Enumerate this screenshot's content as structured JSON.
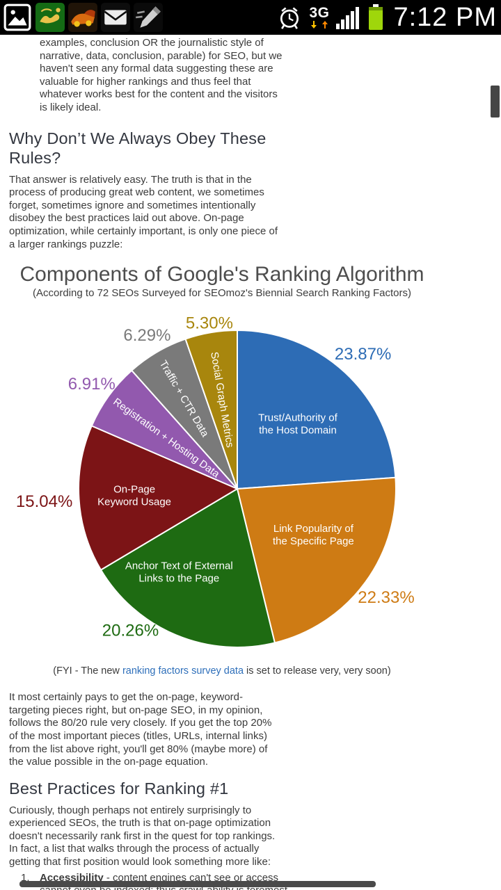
{
  "status_bar": {
    "time": "7:12 PM",
    "network_label": "3G",
    "left_icons": [
      "gallery-icon",
      "quran-app-icon",
      "racing-game-icon",
      "email-icon",
      "memo-icon"
    ],
    "right_icons": [
      "alarm-icon",
      "network-indicator",
      "signal-icon",
      "battery-icon"
    ],
    "colors": {
      "background": "#000000",
      "battery": "#9fd60b",
      "arrow_down": "#ffc400",
      "arrow_up": "#ff8800"
    }
  },
  "article": {
    "intro_fragment": "examples, conclusion OR the journalistic style of narrative, data, conclusion, parable) for SEO, but we haven't seen any formal data suggesting these are valuable for higher rankings and thus feel that whatever works best for the content and the visitors is likely ideal.",
    "heading_rules": "Why Don’t We Always Obey These Rules?",
    "para_rules": "That answer is relatively easy. The truth is that in the process of producing great web content, we sometimes forget, sometimes ignore and sometimes intentionally disobey the best practices laid out above. On-page optimization, while certainly important, is only one piece of a larger rankings puzzle:",
    "caption": {
      "prefix": "(FYI - The new ",
      "link_text": "ranking factors survey data",
      "suffix": " is set to release very, very soon)"
    },
    "para_8020": "It most certainly pays to get the on-page, keyword-targeting pieces right, but on-page SEO, in my opinion, follows the 80/20 rule very closely. If you get the top 20% of the most important pieces (titles, URLs, internal links) from the list above right, you'll get 80% (maybe more) of the value possible in the on-page equation.",
    "heading_best": "Best Practices for Ranking #1",
    "para_best": "Curiously, though perhaps not entirely surprisingly to experienced SEOs, the truth is that on-page optimization doesn't necessarily rank first in the quest for top rankings. In fact, a list that walks through the process of actually getting that first position would look something more like:",
    "list": [
      {
        "number": "1.",
        "term": "Accessibility",
        "text": " - content engines can't see or access cannot even be indexed; thus crawl-ability is foremost on this list"
      }
    ]
  },
  "chart_data": {
    "type": "pie",
    "title": "Components of Google's Ranking Algorithm",
    "subtitle": "(According to 72 SEOs Surveyed for SEOmoz's Biennial Search Ranking Factors)",
    "start_angle_deg": 0,
    "direction": "clockwise",
    "slices": [
      {
        "label": "Trust/Authority of the Host Domain",
        "lines": [
          "Trust/Authority of",
          "the Host Domain"
        ],
        "value": 23.87,
        "color": "#2d6cb5",
        "label_r": 0.56,
        "pct_r": 265
      },
      {
        "label": "Link Popularity of the Specific Page",
        "lines": [
          "Link Popularity of",
          "the Specific Page"
        ],
        "value": 22.33,
        "color": "#ce7b14",
        "label_r": 0.56,
        "label_angle": 121,
        "pct_r": 265
      },
      {
        "label": "Anchor Text of External Links to the Page",
        "lines": [
          "Anchor Text of External",
          "Links to the Page"
        ],
        "value": 20.26,
        "color": "#1e6b12",
        "label_r": 0.64,
        "label_angle": 215,
        "pct_r": 255,
        "pct_angle": 217
      },
      {
        "label": "On-Page Keyword Usage",
        "lines": [
          "On-Page",
          "Keyword Usage"
        ],
        "value": 15.04,
        "color": "#7c1416",
        "label_r": 0.65,
        "pct_r": 278
      },
      {
        "label": "Registration + Hosting Data",
        "lines": [
          "Registration + Hosting Data"
        ],
        "value": 6.91,
        "color": "#9259ae",
        "label_r": 0.55,
        "rotated": true,
        "pct_r": 258
      },
      {
        "label": "Traffic + CTR Data",
        "lines": [
          "Traffic + CTR Data"
        ],
        "value": 6.29,
        "color": "#7a7a7a",
        "label_r": 0.66,
        "rotated": true,
        "pct_r": 256
      },
      {
        "label": "Social Graph Metrics",
        "lines": [
          "Social Graph Metrics"
        ],
        "value": 5.3,
        "color": "#a8860d",
        "label_r": 0.57,
        "rotated": true,
        "pct_r": 242
      }
    ]
  }
}
